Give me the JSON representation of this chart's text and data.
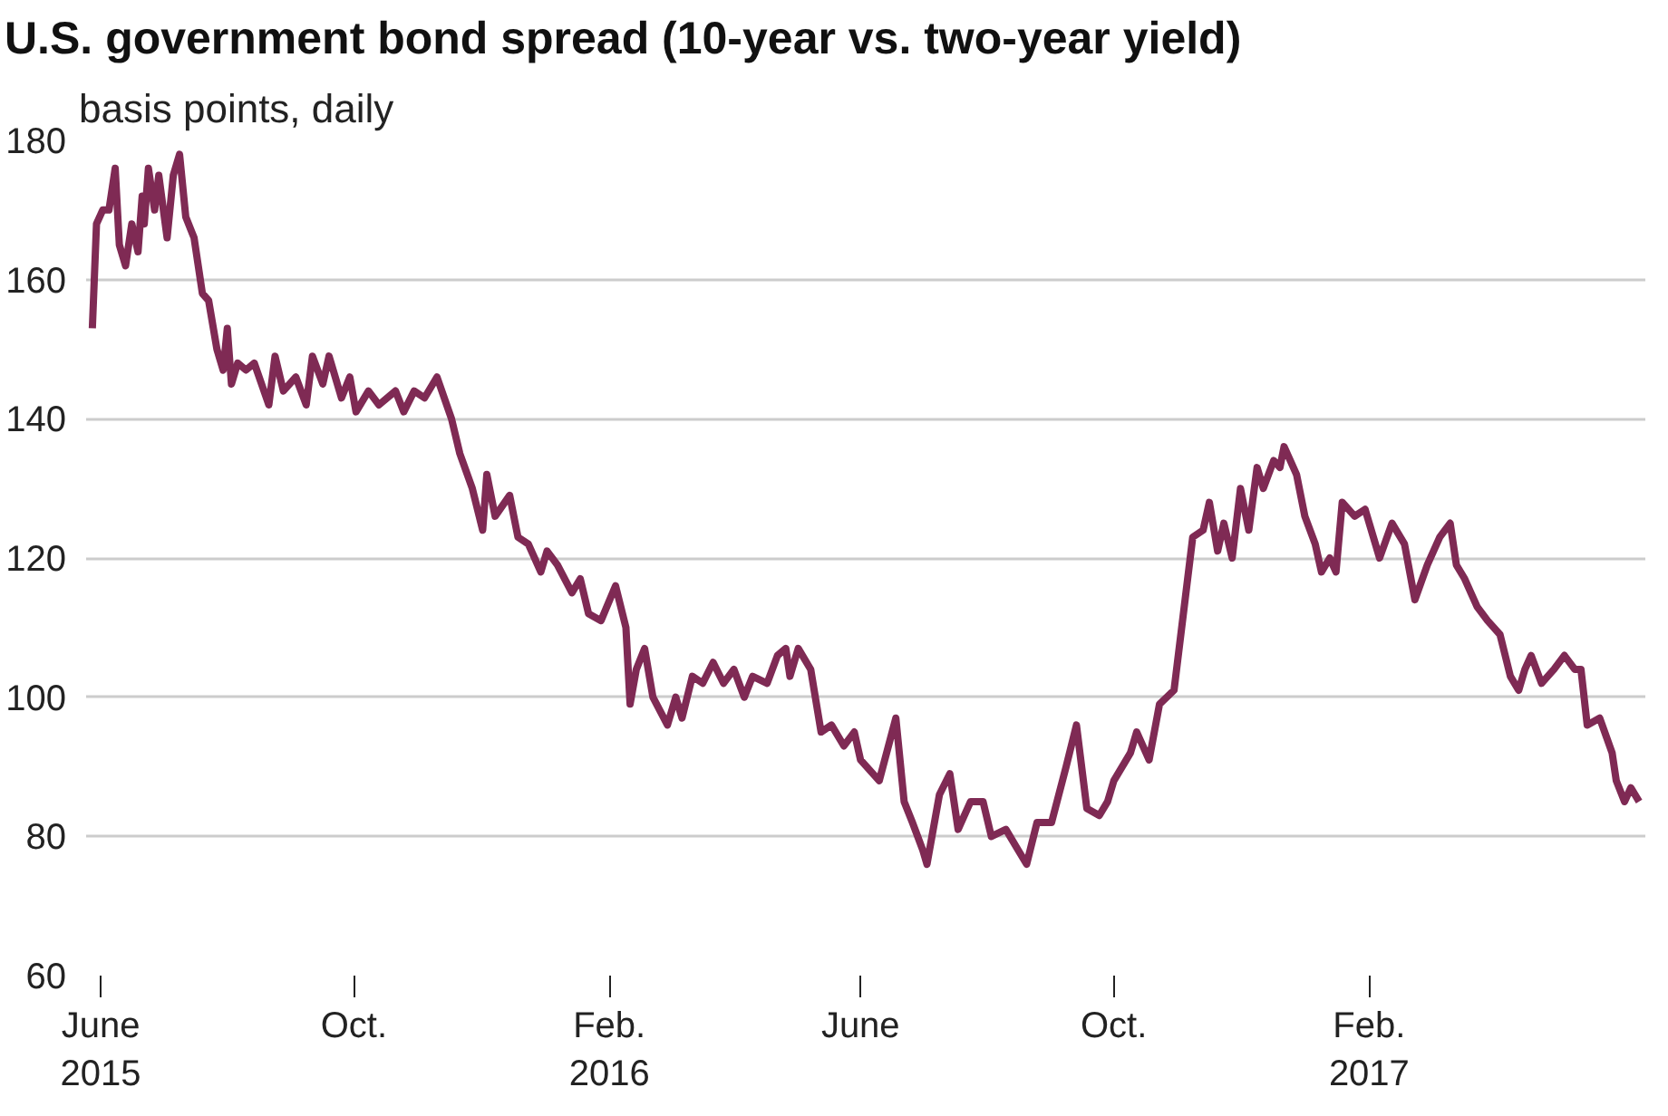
{
  "chart_data": {
    "type": "line",
    "title": "U.S. government bond spread (10-year vs. two-year yield)",
    "ylabel": "basis points, daily",
    "xlim": [
      "2015-05-25",
      "2017-06-14"
    ],
    "ylim": [
      60,
      180
    ],
    "yticks": [
      60,
      80,
      100,
      120,
      140,
      160,
      180
    ],
    "xticks": [
      {
        "value": "2015-06-01",
        "label": "June\n2015"
      },
      {
        "value": "2015-10-01",
        "label": "Oct."
      },
      {
        "value": "2016-02-01",
        "label": "Feb.\n2016"
      },
      {
        "value": "2016-06-01",
        "label": "June"
      },
      {
        "value": "2016-10-01",
        "label": "Oct."
      },
      {
        "value": "2017-02-01",
        "label": "Feb.\n2017"
      }
    ],
    "grid": "y",
    "marker": "none",
    "line_style": "solid",
    "x": [
      "2015-05-28",
      "2015-05-30",
      "2015-06-02",
      "2015-06-05",
      "2015-06-08",
      "2015-06-10",
      "2015-06-13",
      "2015-06-16",
      "2015-06-19",
      "2015-06-21",
      "2015-06-22",
      "2015-06-24",
      "2015-06-27",
      "2015-06-29",
      "2015-07-03",
      "2015-07-06",
      "2015-07-09",
      "2015-07-12",
      "2015-07-16",
      "2015-07-20",
      "2015-07-23",
      "2015-07-27",
      "2015-07-30",
      "2015-08-01",
      "2015-08-03",
      "2015-08-06",
      "2015-08-10",
      "2015-08-14",
      "2015-08-21",
      "2015-08-24",
      "2015-08-28",
      "2015-09-03",
      "2015-09-08",
      "2015-09-11",
      "2015-09-16",
      "2015-09-19",
      "2015-09-25",
      "2015-09-29",
      "2015-10-02",
      "2015-10-08",
      "2015-10-13",
      "2015-10-21",
      "2015-10-25",
      "2015-10-30",
      "2015-11-04",
      "2015-11-10",
      "2015-11-17",
      "2015-11-21",
      "2015-11-27",
      "2015-12-02",
      "2015-12-04",
      "2015-12-08",
      "2015-12-15",
      "2015-12-19",
      "2015-12-24",
      "2015-12-30",
      "2016-01-02",
      "2016-01-07",
      "2016-01-14",
      "2016-01-18",
      "2016-01-22",
      "2016-01-28",
      "2016-02-04",
      "2016-02-09",
      "2016-02-11",
      "2016-02-14",
      "2016-02-18",
      "2016-02-22",
      "2016-02-29",
      "2016-03-04",
      "2016-03-07",
      "2016-03-12",
      "2016-03-17",
      "2016-03-22",
      "2016-03-27",
      "2016-04-01",
      "2016-04-06",
      "2016-04-10",
      "2016-04-17",
      "2016-04-22",
      "2016-04-26",
      "2016-04-28",
      "2016-05-02",
      "2016-05-08",
      "2016-05-13",
      "2016-05-18",
      "2016-05-24",
      "2016-05-29",
      "2016-06-01",
      "2016-06-10",
      "2016-06-18",
      "2016-06-22",
      "2016-06-26",
      "2016-07-01",
      "2016-07-03",
      "2016-07-09",
      "2016-07-14",
      "2016-07-18",
      "2016-07-24",
      "2016-07-30",
      "2016-08-03",
      "2016-08-10",
      "2016-08-16",
      "2016-08-20",
      "2016-08-25",
      "2016-09-01",
      "2016-09-08",
      "2016-09-13",
      "2016-09-18",
      "2016-09-24",
      "2016-09-28",
      "2016-10-01",
      "2016-10-09",
      "2016-10-12",
      "2016-10-18",
      "2016-10-23",
      "2016-10-30",
      "2016-11-08",
      "2016-11-13",
      "2016-11-16",
      "2016-11-20",
      "2016-11-23",
      "2016-11-27",
      "2016-12-01",
      "2016-12-05",
      "2016-12-09",
      "2016-12-12",
      "2016-12-17",
      "2016-12-20",
      "2016-12-22",
      "2016-12-28",
      "2017-01-01",
      "2017-01-06",
      "2017-01-09",
      "2017-01-13",
      "2017-01-16",
      "2017-01-19",
      "2017-01-25",
      "2017-01-30",
      "2017-02-06",
      "2017-02-12",
      "2017-02-18",
      "2017-02-23",
      "2017-03-01",
      "2017-03-07",
      "2017-03-12",
      "2017-03-15",
      "2017-03-19",
      "2017-03-25",
      "2017-03-30",
      "2017-04-05",
      "2017-04-10",
      "2017-04-14",
      "2017-04-17",
      "2017-04-20",
      "2017-04-25",
      "2017-05-01",
      "2017-05-06",
      "2017-05-11",
      "2017-05-14",
      "2017-05-17",
      "2017-05-23",
      "2017-05-29",
      "2017-05-31",
      "2017-06-04",
      "2017-06-07",
      "2017-06-11"
    ],
    "series": [
      {
        "color": "#7f2a54",
        "values": [
          153,
          168,
          170,
          170,
          176,
          165,
          162,
          168,
          164,
          172,
          168,
          176,
          170,
          175,
          166,
          175,
          178,
          169,
          166,
          158,
          157,
          150,
          147,
          153,
          145,
          148,
          147,
          148,
          142,
          149,
          144,
          146,
          142,
          149,
          145,
          149,
          143,
          146,
          141,
          144,
          142,
          144,
          141,
          144,
          143,
          146,
          140,
          135,
          130,
          124,
          132,
          126,
          129,
          123,
          122,
          118,
          121,
          119,
          115,
          117,
          112,
          111,
          116,
          110,
          99,
          104,
          107,
          100,
          96,
          100,
          97,
          103,
          102,
          105,
          102,
          104,
          100,
          103,
          102,
          106,
          107,
          103,
          107,
          104,
          95,
          96,
          93,
          95,
          91,
          88,
          97,
          85,
          82,
          78,
          76,
          86,
          89,
          81,
          85,
          85,
          80,
          81,
          78,
          76,
          82,
          82,
          90,
          96,
          84,
          83,
          85,
          88,
          92,
          95,
          91,
          99,
          101,
          123,
          124,
          128,
          121,
          125,
          120,
          130,
          124,
          133,
          130,
          134,
          133,
          136,
          132,
          126,
          122,
          118,
          120,
          118,
          128,
          126,
          127,
          120,
          125,
          122,
          114,
          119,
          123,
          125,
          119,
          117,
          113,
          111,
          109,
          103,
          101,
          104,
          106,
          102,
          104,
          106,
          104,
          104,
          96,
          97,
          92,
          88,
          85,
          87,
          85
        ]
      }
    ]
  }
}
